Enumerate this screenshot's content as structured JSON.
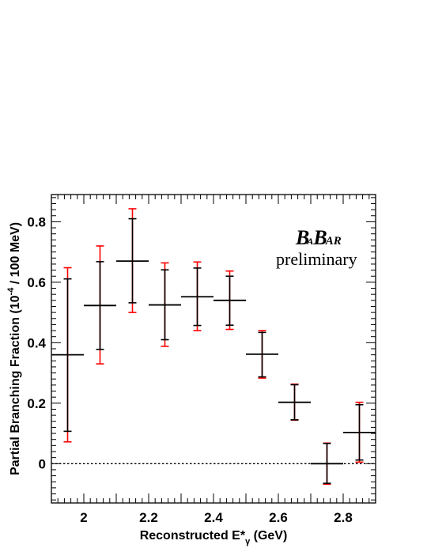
{
  "chart_data": {
    "type": "scatter",
    "title": "",
    "xlabel": "Reconstructed E*γ (GeV)",
    "ylabel": "Partial Branching Fraction (10⁻⁴ / 100 MeV)",
    "xlim": [
      1.9,
      2.9
    ],
    "ylim": [
      -0.13,
      0.89
    ],
    "x_ticks": [
      "2",
      "2.2",
      "2.4",
      "2.6",
      "2.8"
    ],
    "y_ticks": [
      "0",
      "0.2",
      "0.4",
      "0.6",
      "0.8"
    ],
    "bin_width": 0.1,
    "zero_line": "dotted",
    "colors": {
      "stat_error": "#000000",
      "total_error": "#ff0000"
    },
    "series": [
      {
        "x": [
          1.95,
          2.05,
          2.15,
          2.25,
          2.35,
          2.45,
          2.55,
          2.65,
          2.75,
          2.85
        ],
        "y": [
          0.36,
          0.523,
          0.67,
          0.525,
          0.552,
          0.54,
          0.362,
          0.203,
          0.0,
          0.103
        ],
        "stat_low": [
          0.107,
          0.378,
          0.532,
          0.41,
          0.457,
          0.458,
          0.287,
          0.145,
          -0.065,
          0.012
        ],
        "stat_high": [
          0.611,
          0.668,
          0.81,
          0.641,
          0.647,
          0.62,
          0.434,
          0.261,
          0.067,
          0.195
        ],
        "total_low": [
          0.072,
          0.33,
          0.5,
          0.388,
          0.44,
          0.444,
          0.283,
          0.144,
          -0.068,
          0.005
        ],
        "total_high": [
          0.648,
          0.72,
          0.843,
          0.664,
          0.667,
          0.637,
          0.44,
          0.263,
          0.068,
          0.203
        ]
      }
    ]
  },
  "legend_text": {
    "experiment_logo": "BaBar",
    "logo_parts": [
      "B",
      "A",
      "B",
      "AR"
    ],
    "status": "preliminary"
  }
}
